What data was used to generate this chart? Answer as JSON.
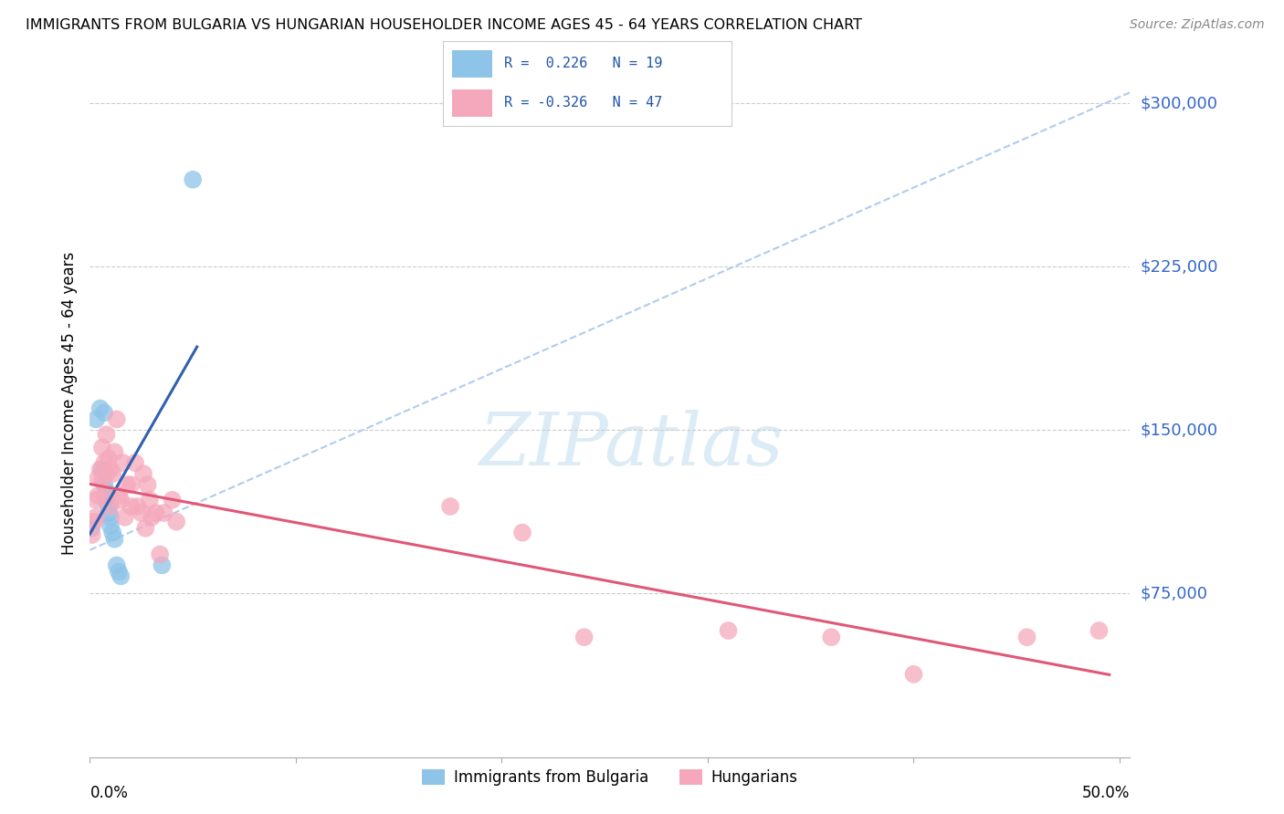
{
  "title": "IMMIGRANTS FROM BULGARIA VS HUNGARIAN HOUSEHOLDER INCOME AGES 45 - 64 YEARS CORRELATION CHART",
  "source": "Source: ZipAtlas.com",
  "ylabel": "Householder Income Ages 45 - 64 years",
  "ytick_labels": [
    "$75,000",
    "$150,000",
    "$225,000",
    "$300,000"
  ],
  "ytick_values": [
    75000,
    150000,
    225000,
    300000
  ],
  "ymin": 0,
  "ymax": 325000,
  "xmin": 0.0,
  "xmax": 0.505,
  "color_bulgaria": "#8EC4E8",
  "color_hungarian": "#F5A8BC",
  "line_color_bulgaria": "#3060B0",
  "line_color_hungarian": "#E05878",
  "dashed_line_color": "#B0CCEE",
  "watermark_color": "#D8EAF5",
  "bulgaria_x": [
    0.0008,
    0.003,
    0.005,
    0.006,
    0.007,
    0.007,
    0.008,
    0.008,
    0.009,
    0.009,
    0.01,
    0.01,
    0.011,
    0.012,
    0.013,
    0.014,
    0.015,
    0.035,
    0.05
  ],
  "bulgaria_y": [
    105000,
    155000,
    160000,
    132000,
    158000,
    125000,
    122000,
    118000,
    115000,
    112000,
    110000,
    106000,
    103000,
    100000,
    88000,
    85000,
    83000,
    88000,
    265000
  ],
  "hungarian_x": [
    0.001,
    0.002,
    0.003,
    0.003,
    0.004,
    0.004,
    0.005,
    0.006,
    0.006,
    0.007,
    0.007,
    0.008,
    0.008,
    0.009,
    0.01,
    0.01,
    0.011,
    0.012,
    0.013,
    0.014,
    0.015,
    0.016,
    0.017,
    0.018,
    0.02,
    0.02,
    0.022,
    0.023,
    0.025,
    0.026,
    0.027,
    0.028,
    0.029,
    0.03,
    0.032,
    0.034,
    0.036,
    0.04,
    0.042,
    0.175,
    0.21,
    0.24,
    0.31,
    0.36,
    0.4,
    0.455,
    0.49
  ],
  "hungarian_y": [
    102000,
    108000,
    118000,
    110000,
    128000,
    120000,
    132000,
    142000,
    127000,
    135000,
    120000,
    148000,
    130000,
    137000,
    132000,
    115000,
    130000,
    140000,
    155000,
    120000,
    118000,
    135000,
    110000,
    125000,
    125000,
    115000,
    135000,
    115000,
    112000,
    130000,
    105000,
    125000,
    118000,
    110000,
    112000,
    93000,
    112000,
    118000,
    108000,
    115000,
    103000,
    55000,
    58000,
    55000,
    38000,
    55000,
    58000
  ]
}
